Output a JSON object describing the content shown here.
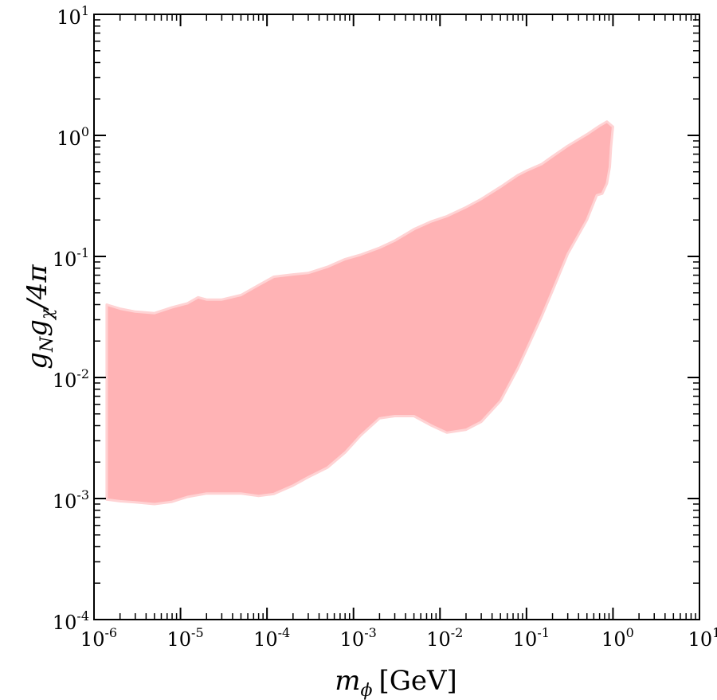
{
  "chart_data": {
    "type": "area",
    "title": "",
    "xscale": "log",
    "yscale": "log",
    "xlim": [
      1e-06,
      10
    ],
    "ylim": [
      0.0001,
      10
    ],
    "xlabel": {
      "symbol": "m",
      "subscript": "ϕ",
      "unit": "[GeV]"
    },
    "ylabel": {
      "g1": "g",
      "sub1": "N",
      "g2": "g",
      "sub2": "χ",
      "suffix": "/4π"
    },
    "x_ticks": [
      {
        "base": "10",
        "exp": "-6",
        "value": 1e-06
      },
      {
        "base": "10",
        "exp": "-5",
        "value": 1e-05
      },
      {
        "base": "10",
        "exp": "-4",
        "value": 0.0001
      },
      {
        "base": "10",
        "exp": "-3",
        "value": 0.001
      },
      {
        "base": "10",
        "exp": "-2",
        "value": 0.01
      },
      {
        "base": "10",
        "exp": "-1",
        "value": 0.1
      },
      {
        "base": "10",
        "exp": "0",
        "value": 1
      },
      {
        "base": "10",
        "exp": "1",
        "value": 10
      }
    ],
    "y_ticks": [
      {
        "base": "10",
        "exp": "-4",
        "value": 0.0001
      },
      {
        "base": "10",
        "exp": "-3",
        "value": 0.001
      },
      {
        "base": "10",
        "exp": "-2",
        "value": 0.01
      },
      {
        "base": "10",
        "exp": "-1",
        "value": 0.1
      },
      {
        "base": "10",
        "exp": "0",
        "value": 1
      },
      {
        "base": "10",
        "exp": "1",
        "value": 10
      }
    ],
    "region": {
      "name": "excluded-region",
      "fill": "#ffb3b5",
      "edge": "#ffd3d4",
      "upper": [
        [
          1.4e-06,
          0.04
        ],
        [
          2e-06,
          0.037
        ],
        [
          3e-06,
          0.035
        ],
        [
          5e-06,
          0.034
        ],
        [
          8e-06,
          0.038
        ],
        [
          1.2e-05,
          0.041
        ],
        [
          1.6e-05,
          0.046
        ],
        [
          2e-05,
          0.044
        ],
        [
          3e-05,
          0.044
        ],
        [
          5e-05,
          0.048
        ],
        [
          8e-05,
          0.058
        ],
        [
          0.00012,
          0.068
        ],
        [
          0.0002,
          0.071
        ],
        [
          0.0003,
          0.073
        ],
        [
          0.0005,
          0.082
        ],
        [
          0.0008,
          0.095
        ],
        [
          0.0012,
          0.103
        ],
        [
          0.002,
          0.118
        ],
        [
          0.003,
          0.135
        ],
        [
          0.005,
          0.168
        ],
        [
          0.008,
          0.195
        ],
        [
          0.012,
          0.215
        ],
        [
          0.02,
          0.255
        ],
        [
          0.03,
          0.298
        ],
        [
          0.05,
          0.375
        ],
        [
          0.08,
          0.47
        ],
        [
          0.1,
          0.51
        ],
        [
          0.15,
          0.58
        ],
        [
          0.2,
          0.67
        ],
        [
          0.3,
          0.82
        ],
        [
          0.5,
          1.02
        ],
        [
          0.7,
          1.2
        ],
        [
          0.85,
          1.3
        ],
        [
          1.0,
          1.18
        ]
      ],
      "lower": [
        [
          1.4e-06,
          0.00098
        ],
        [
          2e-06,
          0.00095
        ],
        [
          3e-06,
          0.00093
        ],
        [
          5e-06,
          0.0009
        ],
        [
          8e-06,
          0.00094
        ],
        [
          1.2e-05,
          0.00103
        ],
        [
          2e-05,
          0.0011
        ],
        [
          5e-05,
          0.0011
        ],
        [
          8e-05,
          0.00105
        ],
        [
          0.00012,
          0.00109
        ],
        [
          0.0002,
          0.00128
        ],
        [
          0.0003,
          0.0015
        ],
        [
          0.0005,
          0.0018
        ],
        [
          0.0008,
          0.0024
        ],
        [
          0.0012,
          0.0033
        ],
        [
          0.002,
          0.0046
        ],
        [
          0.003,
          0.0048
        ],
        [
          0.005,
          0.0048
        ],
        [
          0.008,
          0.004
        ],
        [
          0.012,
          0.0035
        ],
        [
          0.02,
          0.0037
        ],
        [
          0.03,
          0.0043
        ],
        [
          0.05,
          0.0064
        ],
        [
          0.08,
          0.012
        ],
        [
          0.1,
          0.017
        ],
        [
          0.15,
          0.032
        ],
        [
          0.2,
          0.052
        ],
        [
          0.3,
          0.105
        ],
        [
          0.5,
          0.2
        ],
        [
          0.65,
          0.32
        ],
        [
          0.75,
          0.33
        ],
        [
          0.85,
          0.4
        ],
        [
          0.92,
          0.55
        ],
        [
          0.95,
          0.8
        ],
        [
          1.0,
          1.18
        ]
      ]
    }
  }
}
